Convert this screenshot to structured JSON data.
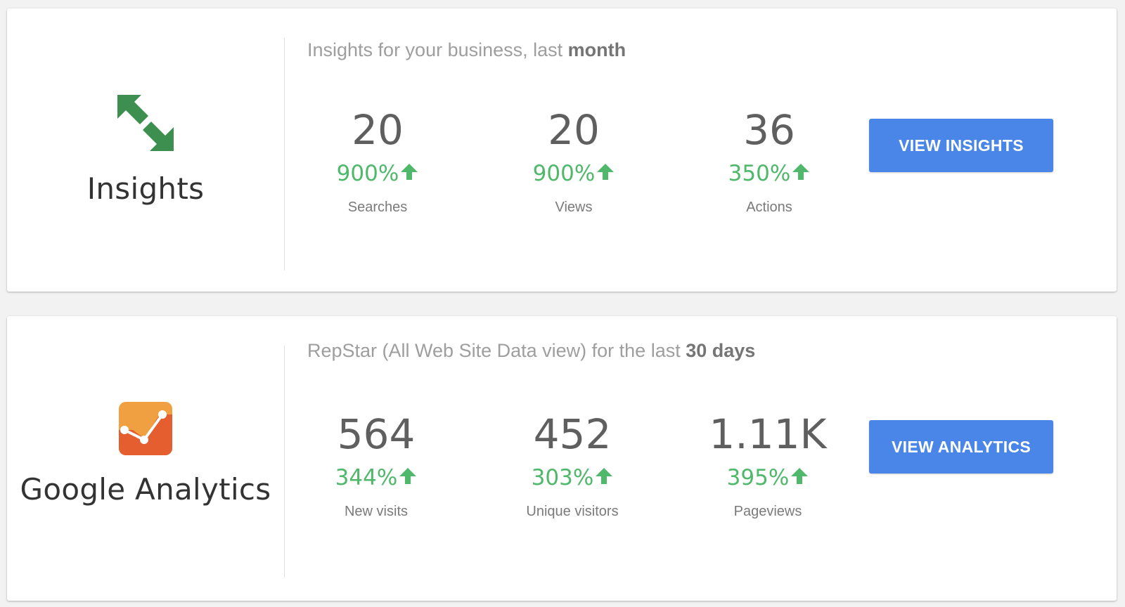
{
  "colors": {
    "accent_button": "#4a86e8",
    "positive_change": "#4fb86b",
    "insights_icon": "#3d8f4f",
    "analytics_icon_top": "#f0a041",
    "analytics_icon_bottom": "#e45e2f"
  },
  "insights": {
    "icon": "insights-arrows-icon",
    "title": "Insights",
    "subtitle_prefix": "Insights for your business, last ",
    "subtitle_bold": "month",
    "metrics": [
      {
        "value": "20",
        "change": "900%",
        "trend": "up",
        "label": "Searches"
      },
      {
        "value": "20",
        "change": "900%",
        "trend": "up",
        "label": "Views"
      },
      {
        "value": "36",
        "change": "350%",
        "trend": "up",
        "label": "Actions"
      }
    ],
    "button_label": "VIEW INSIGHTS"
  },
  "analytics": {
    "icon": "google-analytics-icon",
    "title": "Google Analytics",
    "subtitle_prefix": "RepStar (All Web Site Data view) for the last ",
    "subtitle_bold": "30 days",
    "metrics": [
      {
        "value": "564",
        "change": "344%",
        "trend": "up",
        "label": "New visits"
      },
      {
        "value": "452",
        "change": "303%",
        "trend": "up",
        "label": "Unique visitors"
      },
      {
        "value": "1.11K",
        "change": "395%",
        "trend": "up",
        "label": "Pageviews"
      }
    ],
    "button_label": "VIEW ANALYTICS"
  }
}
